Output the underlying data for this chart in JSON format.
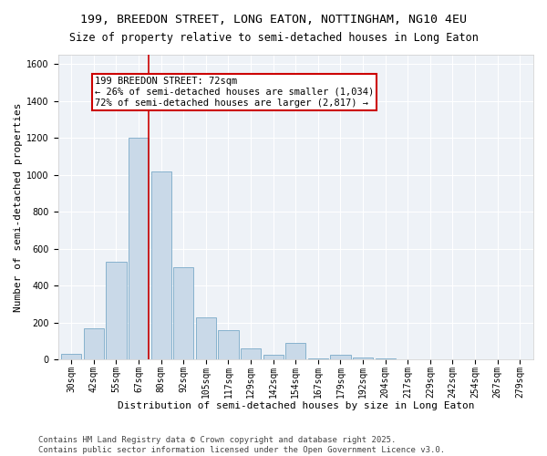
{
  "title1": "199, BREEDON STREET, LONG EATON, NOTTINGHAM, NG10 4EU",
  "title2": "Size of property relative to semi-detached houses in Long Eaton",
  "xlabel": "Distribution of semi-detached houses by size in Long Eaton",
  "ylabel": "Number of semi-detached properties",
  "categories": [
    "30sqm",
    "42sqm",
    "55sqm",
    "67sqm",
    "80sqm",
    "92sqm",
    "105sqm",
    "117sqm",
    "129sqm",
    "142sqm",
    "154sqm",
    "167sqm",
    "179sqm",
    "192sqm",
    "204sqm",
    "217sqm",
    "229sqm",
    "242sqm",
    "254sqm",
    "267sqm",
    "279sqm"
  ],
  "values": [
    30,
    170,
    530,
    1200,
    1020,
    500,
    230,
    160,
    60,
    25,
    90,
    5,
    25,
    10,
    5,
    2,
    0,
    0,
    0,
    0,
    0
  ],
  "bar_color": "#c9d9e8",
  "bar_edge_color": "#7aaac8",
  "annotation_title": "199 BREEDON STREET: 72sqm",
  "annotation_line1": "← 26% of semi-detached houses are smaller (1,034)",
  "annotation_line2": "72% of semi-detached houses are larger (2,817) →",
  "annotation_box_color": "#ffffff",
  "annotation_box_edge": "#cc0000",
  "ylim": [
    0,
    1650
  ],
  "yticks": [
    0,
    200,
    400,
    600,
    800,
    1000,
    1200,
    1400,
    1600
  ],
  "bg_color": "#eef2f7",
  "footer1": "Contains HM Land Registry data © Crown copyright and database right 2025.",
  "footer2": "Contains public sector information licensed under the Open Government Licence v3.0.",
  "title_fontsize": 9.5,
  "subtitle_fontsize": 8.5,
  "axis_label_fontsize": 8,
  "tick_fontsize": 7,
  "footer_fontsize": 6.5,
  "annot_fontsize": 7.5
}
